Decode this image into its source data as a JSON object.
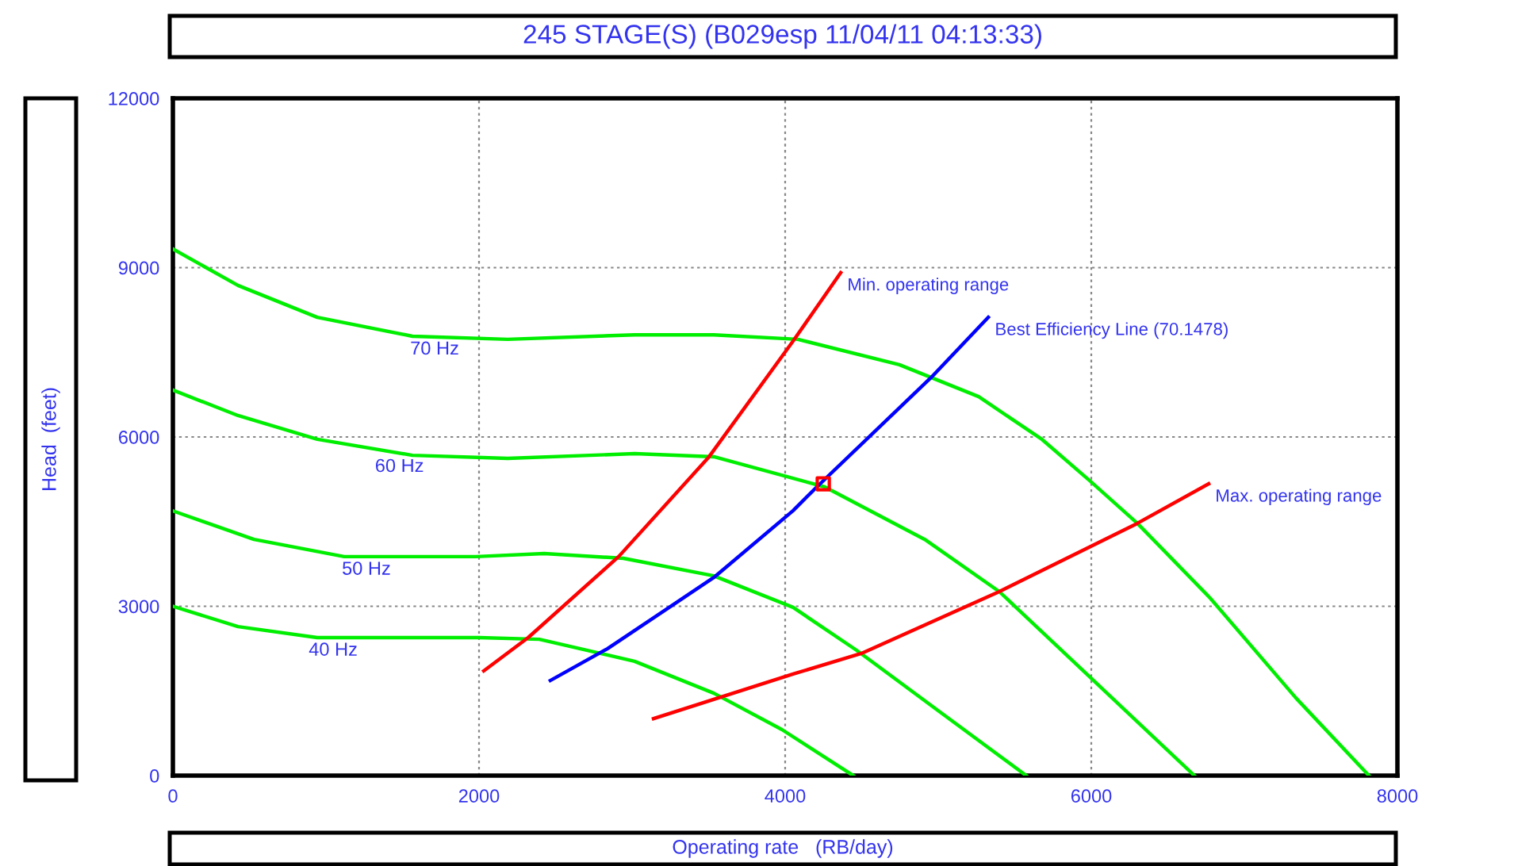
{
  "chart_data": {
    "type": "line",
    "title": "245 STAGE(S) (B029esp 11/04/11 04:13:33)",
    "xlabel": "Operating rate   (RB/day)",
    "ylabel": "Head  (feet)",
    "xlim": [
      0,
      8000
    ],
    "xticks": [
      0,
      2000,
      4000,
      6000,
      8000
    ],
    "ylim": [
      0,
      12000
    ],
    "yticks": [
      0,
      3000,
      6000,
      9000,
      12000
    ],
    "grid": true,
    "legend": false,
    "marker": "none",
    "line_style": "solid",
    "series": [
      {
        "color": "#00ee00",
        "x": [
          0,
          425,
          943,
          2000,
          2394,
          3016,
          3534,
          3979,
          4445
        ],
        "values": [
          3000,
          2640,
          2445,
          2445,
          2415,
          2025,
          1460,
          815,
          0
        ]
      },
      {
        "color": "#00ee00",
        "x": [
          0,
          529,
          1119,
          1979,
          2425,
          2943,
          3534,
          4052,
          4467,
          4985,
          5575
        ],
        "values": [
          4690,
          4185,
          3880,
          3880,
          3935,
          3850,
          3540,
          2980,
          2220,
          1180,
          0
        ]
      },
      {
        "color": "#00ee00",
        "x": [
          0,
          425,
          943,
          1565,
          2187,
          3016,
          3534,
          4259,
          4912,
          5399,
          5948,
          6674
        ],
        "values": [
          6830,
          6380,
          5960,
          5675,
          5620,
          5705,
          5650,
          5115,
          4185,
          3260,
          1855,
          0
        ]
      },
      {
        "color": "#00ee00",
        "x": [
          0,
          425,
          943,
          1565,
          2187,
          3016,
          3534,
          4083,
          4746,
          5264,
          5679,
          5990,
          6301,
          6777,
          7337,
          7814
        ],
        "values": [
          9330,
          8685,
          8120,
          7785,
          7730,
          7810,
          7810,
          7730,
          7280,
          6715,
          5955,
          5225,
          4470,
          3145,
          1375,
          0
        ]
      },
      {
        "color": "#ff0000",
        "x": [
          2031,
          2321,
          2912,
          3503,
          4052,
          4363
        ],
        "values": [
          1855,
          2445,
          3880,
          5650,
          7700,
          8910
        ]
      },
      {
        "color": "#0000ff",
        "x": [
          2466,
          2840,
          3534,
          4052,
          4207,
          4954,
          5327
        ],
        "values": [
          1685,
          2250,
          3510,
          4695,
          5115,
          7055,
          8120
        ]
      },
      {
        "color": "#ff0000",
        "x": [
          3140,
          4052,
          4498,
          5399,
          6301,
          6767
        ],
        "values": [
          1010,
          1800,
          2165,
          3260,
          4470,
          5170
        ]
      },
      {
        "type": "scatter",
        "marker": "square",
        "color": "#ff0000",
        "x": [
          4249
        ],
        "values": [
          5170
        ]
      }
    ],
    "annotations": [
      {
        "text": "70 Hz",
        "x": 1710,
        "y": 7780
      },
      {
        "text": "60 Hz",
        "x": 1480,
        "y": 5700
      },
      {
        "text": "50 Hz",
        "x": 1264,
        "y": 3880
      },
      {
        "text": "40 Hz",
        "x": 1047,
        "y": 2445
      },
      {
        "text": "Min. operating range",
        "x": 4363,
        "y": 8910
      },
      {
        "text": "Best Efficiency Line (70.1478)",
        "x": 5327,
        "y": 8120
      },
      {
        "text": "Max. operating range",
        "x": 6767,
        "y": 5170
      }
    ]
  }
}
